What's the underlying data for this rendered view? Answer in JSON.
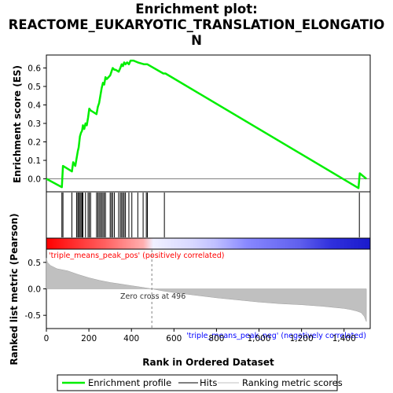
{
  "title_line1": "Enrichment plot:",
  "title_line2": "REACTOME_EUKARYOTIC_TRANSLATION_ELONGATIO",
  "title_line3": "N",
  "chart_data": {
    "type": "line",
    "x_range": [
      0,
      1523
    ],
    "x_ticks": [
      "0",
      "200",
      "400",
      "600",
      "800",
      "1,000",
      "1,200",
      "1,400"
    ],
    "x_tick_values": [
      0,
      200,
      400,
      600,
      800,
      1000,
      1200,
      1400
    ],
    "xlabel": "Rank in Ordered Dataset",
    "top_panel": {
      "ylabel": "Enrichment score (ES)",
      "ylim": [
        -0.07,
        0.67
      ],
      "y_ticks": [
        "0.0",
        "0.1",
        "0.2",
        "0.3",
        "0.4",
        "0.5",
        "0.6"
      ],
      "y_tick_values": [
        0.0,
        0.1,
        0.2,
        0.3,
        0.4,
        0.5,
        0.6
      ],
      "series": [
        {
          "name": "Enrichment profile",
          "color": "#00ee00",
          "x": [
            0,
            73,
            78,
            120,
            126,
            136,
            142,
            148,
            152,
            158,
            163,
            168,
            172,
            178,
            184,
            190,
            196,
            202,
            208,
            236,
            242,
            248,
            254,
            260,
            266,
            272,
            278,
            284,
            300,
            306,
            312,
            320,
            326,
            340,
            348,
            354,
            360,
            366,
            372,
            380,
            388,
            396,
            402,
            410,
            430,
            460,
            475,
            550,
            560,
            1468,
            1474,
            1505
          ],
          "y": [
            0.0,
            -0.045,
            0.07,
            0.04,
            0.09,
            0.07,
            0.11,
            0.15,
            0.17,
            0.23,
            0.25,
            0.26,
            0.29,
            0.27,
            0.3,
            0.29,
            0.33,
            0.38,
            0.37,
            0.35,
            0.39,
            0.41,
            0.45,
            0.49,
            0.52,
            0.51,
            0.55,
            0.54,
            0.56,
            0.58,
            0.6,
            0.59,
            0.59,
            0.58,
            0.6,
            0.62,
            0.61,
            0.63,
            0.62,
            0.63,
            0.62,
            0.64,
            0.64,
            0.64,
            0.63,
            0.62,
            0.62,
            0.57,
            0.57,
            -0.05,
            0.03,
            0.0
          ]
        }
      ]
    },
    "hits_panel": {
      "hit_positions": [
        73,
        78,
        120,
        142,
        148,
        152,
        158,
        163,
        168,
        172,
        184,
        196,
        202,
        208,
        236,
        242,
        248,
        254,
        260,
        266,
        272,
        278,
        300,
        306,
        312,
        320,
        340,
        348,
        354,
        360,
        366,
        372,
        388,
        402,
        430,
        455,
        470,
        475,
        555,
        1472
      ]
    },
    "bottom_panel": {
      "ylabel": "Ranked list metric (Pearson)",
      "ylim": [
        -0.75,
        0.75
      ],
      "y_ticks": [
        "0.5",
        "0.0",
        "-0.5"
      ],
      "y_tick_values": [
        0.5,
        0.0,
        -0.5
      ],
      "metric_x": [
        0,
        5,
        20,
        50,
        100,
        150,
        200,
        250,
        300,
        350,
        400,
        450,
        496,
        550,
        600,
        700,
        800,
        900,
        1000,
        1100,
        1200,
        1300,
        1350,
        1400,
        1430,
        1460,
        1480,
        1495,
        1505
      ],
      "metric_y": [
        0.58,
        0.5,
        0.44,
        0.38,
        0.34,
        0.27,
        0.21,
        0.16,
        0.12,
        0.09,
        0.06,
        0.03,
        0.0,
        -0.04,
        -0.07,
        -0.12,
        -0.17,
        -0.21,
        -0.25,
        -0.28,
        -0.3,
        -0.33,
        -0.35,
        -0.37,
        -0.39,
        -0.42,
        -0.45,
        -0.52,
        -0.62
      ],
      "zero_cross_label": "Zero cross at 496",
      "zero_cross_rank": 496,
      "pos_label": "'triple_means_peak_pos' (positively correlated)",
      "neg_label": "'triple_means_peak_neg' (negatively correlated)"
    },
    "legend": [
      {
        "label": "Enrichment profile",
        "color": "#00ee00"
      },
      {
        "label": "Hits",
        "color": "#000000"
      },
      {
        "label": "Ranking metric scores",
        "color": "#c0c0c0"
      }
    ],
    "legend_position": "bottom",
    "colors": {
      "profile": "#00ee00",
      "metric_fill": "#c0c0c0",
      "pos_text": "#ff0000",
      "neg_text": "#0000ff",
      "zero_line": "#808080"
    }
  }
}
